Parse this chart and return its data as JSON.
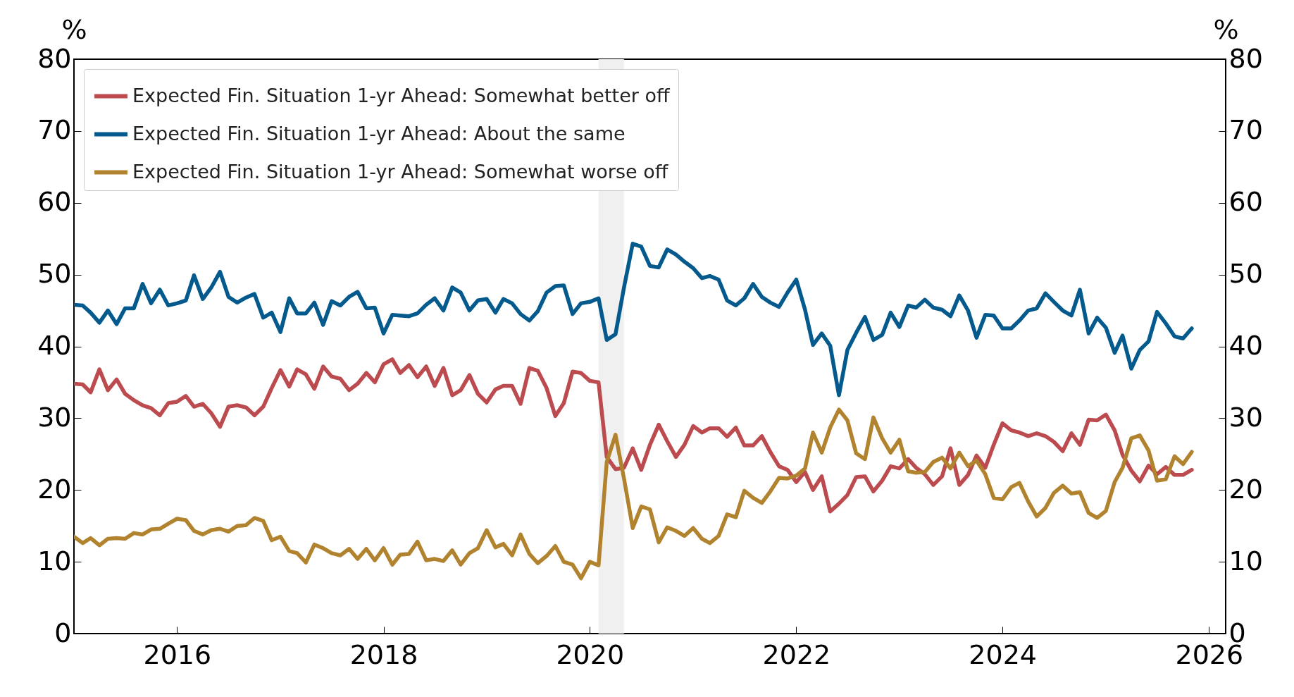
{
  "chart_data": {
    "type": "line",
    "x": [
      "2015-01",
      "2015-02",
      "2015-03",
      "2015-04",
      "2015-05",
      "2015-06",
      "2015-07",
      "2015-08",
      "2015-09",
      "2015-10",
      "2015-11",
      "2015-12",
      "2016-01",
      "2016-02",
      "2016-03",
      "2016-04",
      "2016-05",
      "2016-06",
      "2016-07",
      "2016-08",
      "2016-09",
      "2016-10",
      "2016-11",
      "2016-12",
      "2017-01",
      "2017-02",
      "2017-03",
      "2017-04",
      "2017-05",
      "2017-06",
      "2017-07",
      "2017-08",
      "2017-09",
      "2017-10",
      "2017-11",
      "2017-12",
      "2018-01",
      "2018-02",
      "2018-03",
      "2018-04",
      "2018-05",
      "2018-06",
      "2018-07",
      "2018-08",
      "2018-09",
      "2018-10",
      "2018-11",
      "2018-12",
      "2019-01",
      "2019-02",
      "2019-03",
      "2019-04",
      "2019-05",
      "2019-06",
      "2019-07",
      "2019-08",
      "2019-09",
      "2019-10",
      "2019-11",
      "2019-12",
      "2020-01",
      "2020-02",
      "2020-03",
      "2020-04",
      "2020-05",
      "2020-06",
      "2020-07",
      "2020-08",
      "2020-09",
      "2020-10",
      "2020-11",
      "2020-12",
      "2021-01",
      "2021-02",
      "2021-03",
      "2021-04",
      "2021-05",
      "2021-06",
      "2021-07",
      "2021-08",
      "2021-09",
      "2021-10",
      "2021-11",
      "2021-12",
      "2022-01",
      "2022-02",
      "2022-03",
      "2022-04",
      "2022-05",
      "2022-06",
      "2022-07",
      "2022-08",
      "2022-09",
      "2022-10",
      "2022-11",
      "2022-12",
      "2023-01",
      "2023-02",
      "2023-03",
      "2023-04",
      "2023-05",
      "2023-06",
      "2023-07",
      "2023-08",
      "2023-09",
      "2023-10",
      "2023-11",
      "2023-12",
      "2024-01",
      "2024-02",
      "2024-03",
      "2024-04",
      "2024-05",
      "2024-06",
      "2024-07",
      "2024-08",
      "2024-09",
      "2024-10",
      "2024-11",
      "2024-12",
      "2025-01",
      "2025-02",
      "2025-03",
      "2025-04",
      "2025-05",
      "2025-06",
      "2025-07",
      "2025-08",
      "2025-09",
      "2025-10",
      "2025-11"
    ],
    "series": [
      {
        "name": "Expected Fin. Situation 1-yr Ahead: Somewhat better off",
        "color": "#bc4b4f",
        "values": [
          34.8,
          34.7,
          33.6,
          36.8,
          33.9,
          35.4,
          33.4,
          32.5,
          31.8,
          31.4,
          30.4,
          32.1,
          32.3,
          33.1,
          31.6,
          32.0,
          30.7,
          28.8,
          31.6,
          31.8,
          31.5,
          30.4,
          31.6,
          34.2,
          36.7,
          34.4,
          36.8,
          36.1,
          34.1,
          37.2,
          35.8,
          35.5,
          33.9,
          34.8,
          36.3,
          35.0,
          37.5,
          38.2,
          36.3,
          37.4,
          35.7,
          37.2,
          34.5,
          37.0,
          33.2,
          33.9,
          36.0,
          33.4,
          32.2,
          34.0,
          34.5,
          34.5,
          32.0,
          37.0,
          36.6,
          34.2,
          30.3,
          32.1,
          36.5,
          36.3,
          35.2,
          35.0,
          24.6,
          22.9,
          23.1,
          25.8,
          22.8,
          26.3,
          29.1,
          26.8,
          24.6,
          26.3,
          28.9,
          28.0,
          28.6,
          28.6,
          27.4,
          28.7,
          26.2,
          26.2,
          27.5,
          25.3,
          23.3,
          22.8,
          21.1,
          22.5,
          20.0,
          21.9,
          17.0,
          18.1,
          19.3,
          21.8,
          21.9,
          19.8,
          21.3,
          23.3,
          23.0,
          24.3,
          23.1,
          22.2,
          20.7,
          21.9,
          25.8,
          20.7,
          22.1,
          24.8,
          23.1,
          26.3,
          29.3,
          28.3,
          28.0,
          27.5,
          27.9,
          27.5,
          26.7,
          25.4,
          27.9,
          26.3,
          29.8,
          29.7,
          30.5,
          28.3,
          24.9,
          22.7,
          21.2,
          23.4,
          22.2,
          23.2,
          22.1,
          22.1,
          22.8
        ]
      },
      {
        "name": "Expected Fin. Situation 1-yr Ahead: About the same",
        "color": "#045a8d",
        "values": [
          45.8,
          45.7,
          44.7,
          43.3,
          45.0,
          43.1,
          45.3,
          45.3,
          48.7,
          46.0,
          47.9,
          45.7,
          46.0,
          46.4,
          49.9,
          46.6,
          48.2,
          50.4,
          46.9,
          46.1,
          46.8,
          47.3,
          44.0,
          44.7,
          42.0,
          46.7,
          44.6,
          44.6,
          46.1,
          43.0,
          46.3,
          45.7,
          46.9,
          47.6,
          45.3,
          45.4,
          41.8,
          44.4,
          44.3,
          44.2,
          44.6,
          45.8,
          46.7,
          45.0,
          48.2,
          47.5,
          45.0,
          46.4,
          46.6,
          44.7,
          46.6,
          46.0,
          44.5,
          43.6,
          44.9,
          47.5,
          48.4,
          48.5,
          44.5,
          46.0,
          46.2,
          46.7,
          40.9,
          41.7,
          48.2,
          54.3,
          53.9,
          51.2,
          51.0,
          53.5,
          52.8,
          51.8,
          50.9,
          49.5,
          49.8,
          49.3,
          46.4,
          45.7,
          46.7,
          48.7,
          46.9,
          46.1,
          45.5,
          47.5,
          49.3,
          45.1,
          40.2,
          41.8,
          40.1,
          33.2,
          39.5,
          41.9,
          44.1,
          40.9,
          41.6,
          44.7,
          42.7,
          45.7,
          45.4,
          46.5,
          45.4,
          45.1,
          44.2,
          47.1,
          45.0,
          41.2,
          44.4,
          44.3,
          42.5,
          42.5,
          43.6,
          45.0,
          45.3,
          47.4,
          46.2,
          45.0,
          44.3,
          47.9,
          41.8,
          44.0,
          42.6,
          39.1,
          41.5,
          36.9,
          39.5,
          40.7,
          44.8,
          43.2,
          41.4,
          41.1,
          42.5
        ]
      },
      {
        "name": "Expected Fin. Situation 1-yr Ahead: Somewhat worse off",
        "color": "#b1832e",
        "values": [
          13.5,
          12.6,
          13.3,
          12.3,
          13.2,
          13.3,
          13.2,
          14.0,
          13.8,
          14.5,
          14.6,
          15.3,
          16.0,
          15.8,
          14.3,
          13.8,
          14.4,
          14.6,
          14.2,
          15.0,
          15.1,
          16.1,
          15.7,
          13.0,
          13.5,
          11.5,
          11.2,
          9.9,
          12.4,
          11.9,
          11.2,
          10.9,
          11.8,
          10.4,
          11.8,
          10.2,
          11.9,
          9.6,
          11.0,
          11.1,
          12.8,
          10.2,
          10.4,
          10.1,
          11.6,
          9.6,
          11.2,
          11.9,
          14.4,
          12.0,
          12.5,
          10.9,
          13.8,
          11.1,
          9.8,
          10.8,
          12.2,
          10.0,
          9.6,
          7.7,
          10.0,
          9.5,
          23.9,
          27.7,
          21.6,
          14.7,
          17.7,
          17.3,
          12.7,
          14.8,
          14.3,
          13.6,
          14.7,
          13.2,
          12.6,
          13.6,
          16.6,
          16.2,
          19.9,
          18.9,
          18.2,
          19.8,
          21.7,
          21.6,
          22.0,
          23.0,
          28.0,
          25.2,
          28.7,
          31.2,
          29.7,
          25.1,
          24.3,
          30.1,
          27.2,
          25.2,
          27.0,
          22.6,
          22.4,
          22.5,
          23.9,
          24.5,
          23.0,
          25.2,
          23.3,
          24.1,
          22.2,
          18.9,
          18.7,
          20.4,
          21.0,
          18.4,
          16.3,
          17.5,
          19.6,
          20.6,
          19.5,
          19.7,
          16.8,
          16.1,
          17.1,
          21.1,
          23.1,
          27.2,
          27.6,
          25.5,
          21.3,
          21.5,
          24.7,
          23.6,
          25.3
        ]
      }
    ],
    "ylabel": "%",
    "y2label": "%",
    "xlim": [
      "2015-01",
      "2026-03"
    ],
    "xticks": [
      "2016",
      "2018",
      "2020",
      "2022",
      "2024",
      "2026"
    ],
    "ylim": [
      0,
      80
    ],
    "yticks": [
      0,
      10,
      20,
      30,
      40,
      50,
      60,
      70,
      80
    ],
    "y2lim": [
      0,
      80
    ],
    "y2ticks": [
      0,
      10,
      20,
      30,
      40,
      50,
      60,
      70,
      80
    ],
    "bands": [
      {
        "axis": "x",
        "from": "2020-02",
        "to": "2020-05",
        "color": "#f0f0f0"
      }
    ],
    "legend": "top left",
    "grid": false,
    "line_style": "solid"
  }
}
